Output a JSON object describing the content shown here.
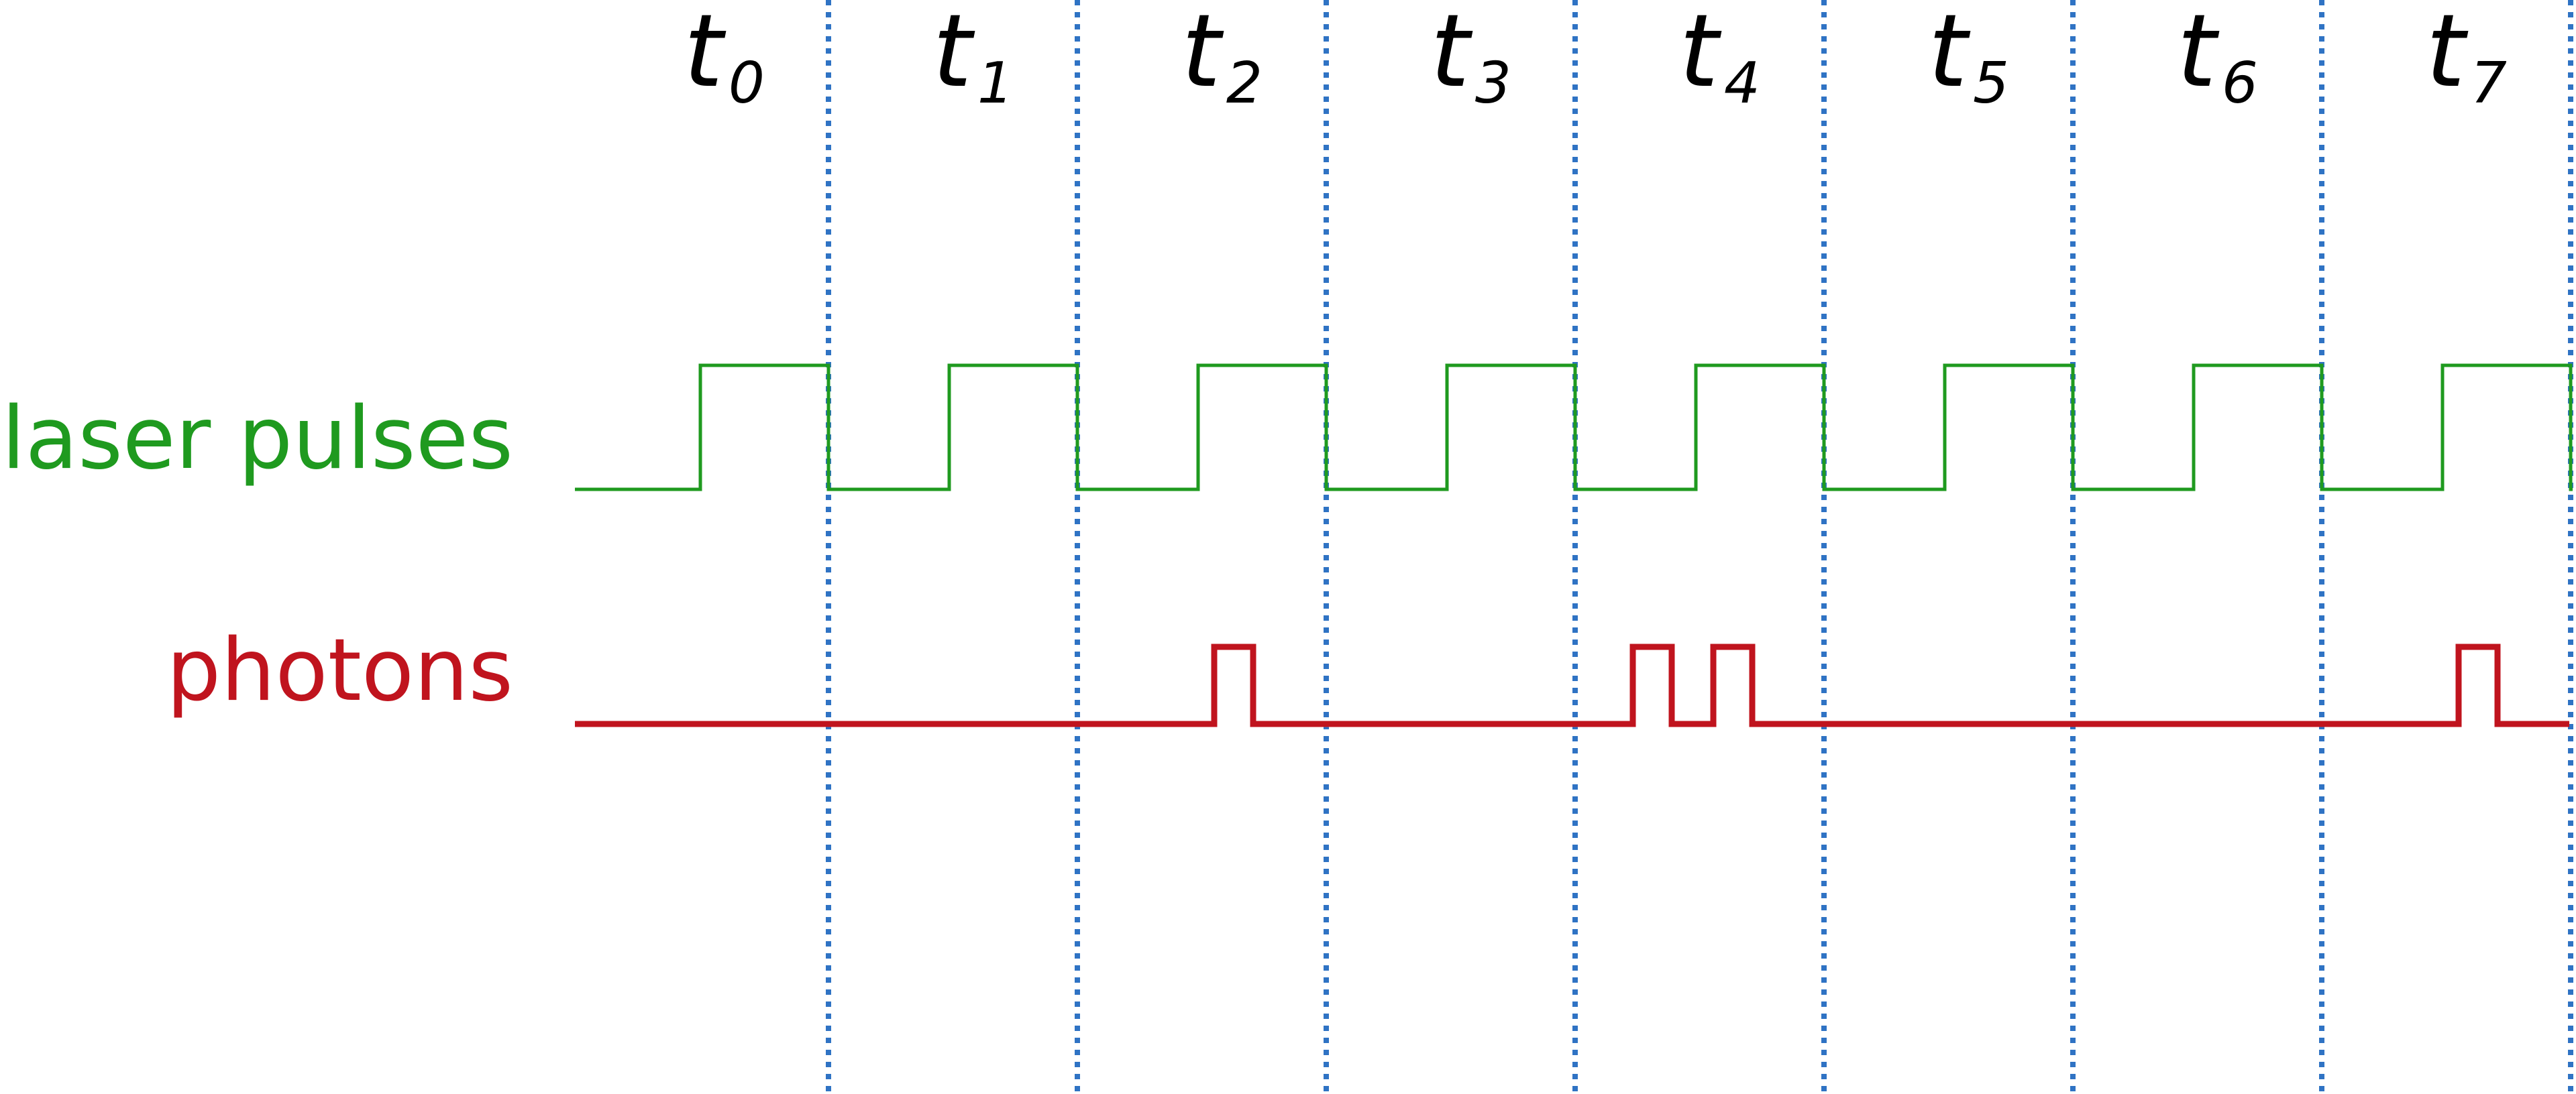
{
  "time_slots": [
    {
      "name": "t",
      "sub": "0"
    },
    {
      "name": "t",
      "sub": "1"
    },
    {
      "name": "t",
      "sub": "2"
    },
    {
      "name": "t",
      "sub": "3"
    },
    {
      "name": "t",
      "sub": "4"
    },
    {
      "name": "t",
      "sub": "5"
    },
    {
      "name": "t",
      "sub": "6"
    },
    {
      "name": "t",
      "sub": "7"
    }
  ],
  "rows": {
    "laser": {
      "label": "laser pulses",
      "color": "#1f9a1f"
    },
    "photons": {
      "label": "photons",
      "color": "#c0141e"
    }
  },
  "photon_pulses_in_slots": [
    2,
    4,
    4,
    7
  ],
  "colors": {
    "slot_divider": "#2f73c4",
    "slot_text": "#000000",
    "laser": "#1f9a1f",
    "photons": "#c0141e"
  }
}
